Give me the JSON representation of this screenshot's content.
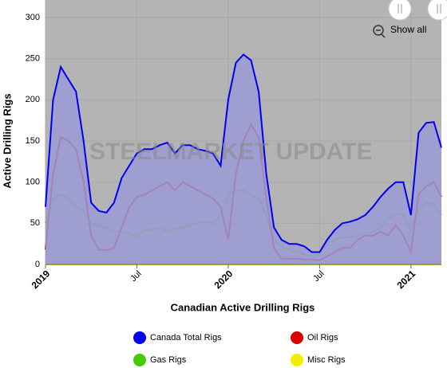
{
  "chart_data": {
    "type": "line",
    "y_axis_label": "Active Drilling Rigs",
    "x_axis_label": "Canadian Active Drilling Rigs",
    "watermark": "STEELMARKET UPDATE",
    "button": "Show all",
    "categories": [
      "2019",
      null,
      null,
      null,
      null,
      null,
      null,
      null,
      null,
      null,
      null,
      null,
      "Jul",
      null,
      null,
      null,
      null,
      null,
      null,
      null,
      null,
      null,
      null,
      null,
      "2020",
      null,
      null,
      null,
      null,
      null,
      null,
      null,
      null,
      null,
      null,
      null,
      "Jul",
      null,
      null,
      null,
      null,
      null,
      null,
      null,
      null,
      null,
      null,
      null,
      "2021",
      null,
      null,
      null,
      null
    ],
    "ylim": [
      0,
      300
    ],
    "yticks": [
      0,
      50,
      100,
      150,
      200,
      250,
      300
    ],
    "grid": true,
    "series": [
      {
        "name": "Canada Total Rigs",
        "color": "#0000ee",
        "area": true,
        "area_color": "#9a9ad6",
        "values": [
          70,
          200,
          240,
          225,
          210,
          150,
          75,
          65,
          63,
          75,
          105,
          120,
          135,
          140,
          140,
          145,
          148,
          135,
          145,
          145,
          140,
          138,
          135,
          120,
          200,
          245,
          255,
          248,
          210,
          110,
          45,
          30,
          25,
          25,
          22,
          15,
          15,
          30,
          42,
          50,
          52,
          55,
          60,
          70,
          82,
          92,
          100,
          100,
          60,
          160,
          172,
          173,
          142
        ]
      },
      {
        "name": "Oil Rigs",
        "color": "#dd0000",
        "values": [
          18,
          110,
          155,
          150,
          140,
          100,
          35,
          18,
          17,
          20,
          45,
          70,
          82,
          85,
          90,
          95,
          100,
          90,
          100,
          95,
          90,
          85,
          80,
          70,
          30,
          110,
          150,
          170,
          155,
          80,
          20,
          7,
          7,
          7,
          6,
          6,
          5,
          10,
          15,
          20,
          20,
          30,
          35,
          35,
          40,
          35,
          48,
          35,
          15,
          85,
          95,
          100,
          82
        ]
      },
      {
        "name": "Gas Rigs",
        "color": "#44cc00",
        "values": [
          50,
          80,
          85,
          80,
          70,
          65,
          50,
          47,
          45,
          40,
          40,
          38,
          33,
          43,
          42,
          45,
          40,
          43,
          45,
          48,
          50,
          52,
          50,
          60,
          85,
          90,
          90,
          85,
          80,
          60,
          30,
          22,
          18,
          15,
          12,
          10,
          12,
          25,
          30,
          33,
          33,
          35,
          38,
          40,
          45,
          55,
          62,
          60,
          42,
          68,
          75,
          73,
          60
        ]
      },
      {
        "name": "Misc Rigs",
        "color": "#eeee00",
        "values": [
          0,
          0,
          0,
          0,
          0,
          0,
          0,
          0,
          0,
          0,
          0,
          0,
          0,
          0,
          0,
          0,
          0,
          0,
          0,
          0,
          0,
          0,
          0,
          0,
          0,
          0,
          0,
          0,
          0,
          0,
          0,
          0,
          0,
          0,
          0,
          0,
          0,
          0,
          0,
          0,
          0,
          0,
          0,
          0,
          0,
          0,
          0,
          0,
          0,
          0,
          0,
          0,
          0
        ]
      }
    ]
  }
}
